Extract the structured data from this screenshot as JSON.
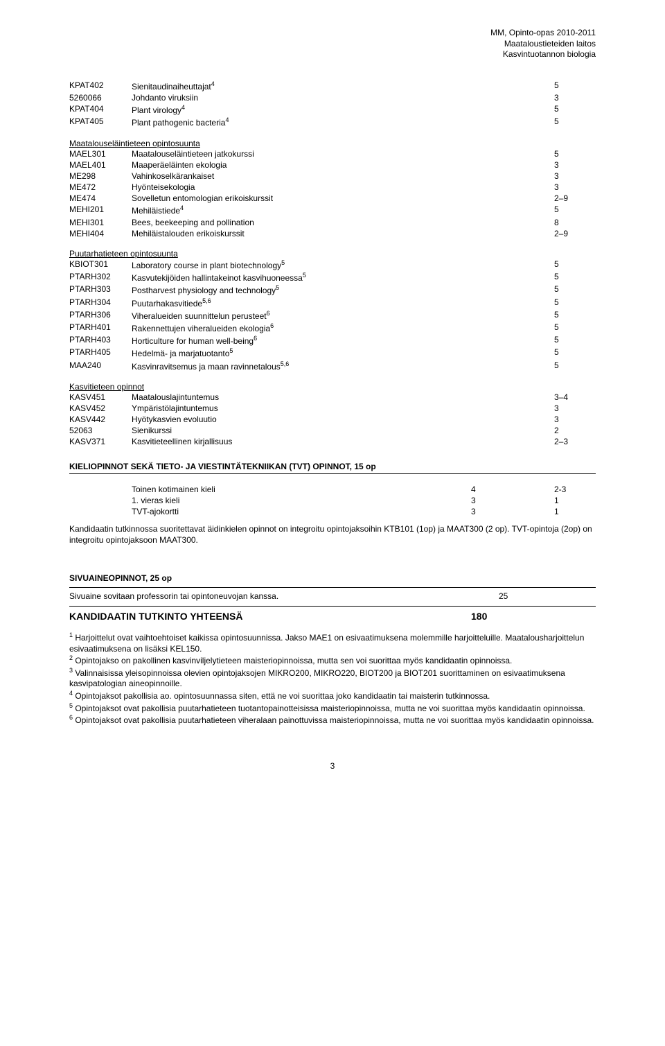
{
  "header": {
    "l1": "MM, Opinto-opas 2010-2011",
    "l2": "Maataloustieteiden laitos",
    "l3": "Kasvintuotannon biologia"
  },
  "block1": [
    {
      "code": "KPAT402",
      "label": "Sienitaudinaiheuttajat",
      "sup": "4",
      "val": "5"
    },
    {
      "code": "5260066",
      "label": "Johdanto viruksiin",
      "val": "3"
    },
    {
      "code": "KPAT404",
      "label": "Plant virology",
      "sup": "4",
      "val": "5"
    },
    {
      "code": "KPAT405",
      "label": "Plant pathogenic bacteria",
      "sup": "4",
      "val": "5"
    }
  ],
  "block2_head": "Maatalouseläintieteen opintosuunta",
  "block2": [
    {
      "code": "MAEL301",
      "label": "Maatalouseläintieteen jatkokurssi",
      "val": "5"
    },
    {
      "code": "MAEL401",
      "label": "Maaperäeläinten ekologia",
      "val": "3"
    },
    {
      "code": "ME298",
      "label": "Vahinkoselkärankaiset",
      "val": "3"
    },
    {
      "code": "ME472",
      "label": "Hyönteisekologia",
      "val": "3"
    },
    {
      "code": "ME474",
      "label": "Sovelletun entomologian erikoiskurssit",
      "val": "2–9"
    },
    {
      "code": "MEHI201",
      "label": "Mehiläistiede",
      "sup": "4",
      "val": "5"
    },
    {
      "code": "MEHI301",
      "label": "Bees, beekeeping and pollination",
      "val": "8"
    },
    {
      "code": "MEHI404",
      "label": "Mehiläistalouden erikoiskurssit",
      "val": "2–9"
    }
  ],
  "block3_head": "Puutarhatieteen opintosuunta",
  "block3": [
    {
      "code": "KBIOT301",
      "label": "Laboratory course in plant biotechnology",
      "sup": "5",
      "val": "5"
    },
    {
      "code": "PTARH302",
      "label": "Kasvutekijöiden hallintakeinot kasvihuoneessa",
      "sup": "5",
      "val": "5"
    },
    {
      "code": "PTARH303",
      "label": "Postharvest physiology and technology",
      "sup": "5",
      "val": "5"
    },
    {
      "code": "PTARH304",
      "label": "Puutarhakasvitiede",
      "sup": "5,6",
      "val": "5"
    },
    {
      "code": "PTARH306",
      "label": "Viheralueiden suunnittelun perusteet",
      "sup": "6",
      "val": "5"
    },
    {
      "code": "PTARH401",
      "label": "Rakennettujen viheralueiden ekologia",
      "sup": "6",
      "val": "5"
    },
    {
      "code": "PTARH403",
      "label": "Horticulture for human well-being",
      "sup": "6",
      "val": "5"
    },
    {
      "code": "PTARH405",
      "label": "Hedelmä- ja marjatuotanto",
      "sup": "5",
      "val": "5"
    },
    {
      "code": "MAA240",
      "label": "Kasvinravitsemus ja maan ravinnetalous",
      "sup": "5,6",
      "val": "5"
    }
  ],
  "block4_head": "Kasvitieteen opinnot",
  "block4": [
    {
      "code": "KASV451",
      "label": "Maatalouslajintuntemus",
      "val": "3–4"
    },
    {
      "code": "KASV452",
      "label": "Ympäristölajintuntemus",
      "val": "3"
    },
    {
      "code": "KASV442",
      "label": "Hyötykasvien evoluutio",
      "val": "3"
    },
    {
      "code": "52063",
      "label": "Sienikurssi",
      "val": "2"
    },
    {
      "code": "KASV371",
      "label": "Kasvitieteellinen kirjallisuus",
      "val": "2–3"
    }
  ],
  "lang_title": "KIELIOPINNOT SEKÄ TIETO- JA VIESTINTÄTEKNIIKAN (TVT) OPINNOT, 15 op",
  "lang_rows": [
    {
      "label": "Toinen kotimainen kieli",
      "c1": "4",
      "c2": "2-3"
    },
    {
      "label": "1. vieras kieli",
      "c1": "3",
      "c2": "1"
    },
    {
      "label": "TVT-ajokortti",
      "c1": "3",
      "c2": "1"
    }
  ],
  "lang_para": "Kandidaatin tutkinnossa suoritettavat äidinkielen opinnot on integroitu opintojaksoihin KTB101 (1op) ja MAAT300 (2 op). TVT-opintoja (2op) on integroitu opintojaksoon MAAT300.",
  "siv_title": "SIVUAINEOPINNOT, 25 op",
  "siv_row_label": "Sivuaine sovitaan professorin tai opintoneuvojan kanssa.",
  "siv_row_val": "25",
  "total_label": "KANDIDAATIN TUTKINTO YHTEENSÄ",
  "total_val": "180",
  "footnotes": [
    {
      "n": "1",
      "t": "Harjoittelut ovat vaihtoehtoiset kaikissa opintosuunnissa. Jakso MAE1 on esivaatimuksena molemmille harjoitteluille. Maatalousharjoittelun esivaatimuksena on lisäksi KEL150."
    },
    {
      "n": "2",
      "t": "Opintojakso on pakollinen kasvinviljelytieteen maisteriopinnoissa, mutta sen voi suorittaa myös kandidaatin opinnoissa."
    },
    {
      "n": "3",
      "t": "Valinnaisissa yleisopinnoissa olevien opintojaksojen MIKRO200, MIKRO220, BIOT200 ja BIOT201 suorittaminen on esivaatimuksena kasvipatologian aineopinnoille."
    },
    {
      "n": "4",
      "t": "Opintojaksot pakollisia ao. opintosuunnassa siten, että ne voi suorittaa joko kandidaatin tai maisterin tutkinnossa."
    },
    {
      "n": "5",
      "t": "Opintojaksot ovat pakollisia puutarhatieteen tuotantopainotteisissa maisteriopinnoissa, mutta ne voi suorittaa myös kandidaatin opinnoissa."
    },
    {
      "n": "6",
      "t": "Opintojaksot ovat pakollisia puutarhatieteen viheralaan painottuvissa maisteriopinnoissa, mutta ne voi suorittaa myös kandidaatin opinnoissa."
    }
  ],
  "page_num": "3"
}
